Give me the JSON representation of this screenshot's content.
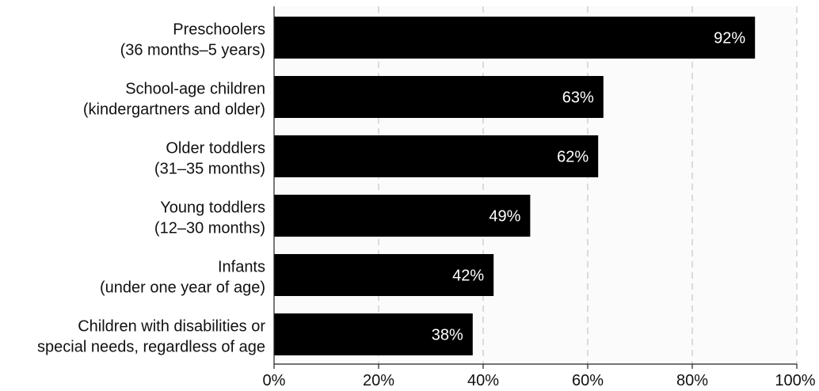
{
  "chart_data": {
    "type": "bar",
    "orientation": "horizontal",
    "categories": [
      [
        "Preschoolers",
        "(36 months–5 years)"
      ],
      [
        "School-age children",
        "(kindergartners and older)"
      ],
      [
        "Older toddlers",
        "(31–35 months)"
      ],
      [
        "Young toddlers",
        "(12–30 months)"
      ],
      [
        "Infants",
        "(under one year of age)"
      ],
      [
        "Children with disabilities or",
        "special needs, regardless of age"
      ]
    ],
    "values": [
      92,
      63,
      62,
      49,
      42,
      38
    ],
    "value_labels": [
      "92%",
      "63%",
      "62%",
      "49%",
      "42%",
      "38%"
    ],
    "xlim": [
      0,
      100
    ],
    "xticks": [
      0,
      20,
      40,
      60,
      80,
      100
    ],
    "xtick_labels": [
      "0%",
      "20%",
      "40%",
      "60%",
      "80%",
      "100%"
    ],
    "grid": "dashed vertical",
    "colors": {
      "bar": "#000000",
      "plot_background": "#fbfbfb",
      "grid": "#bbbbbb",
      "value_label": "#ffffff",
      "text": "#111111"
    }
  }
}
